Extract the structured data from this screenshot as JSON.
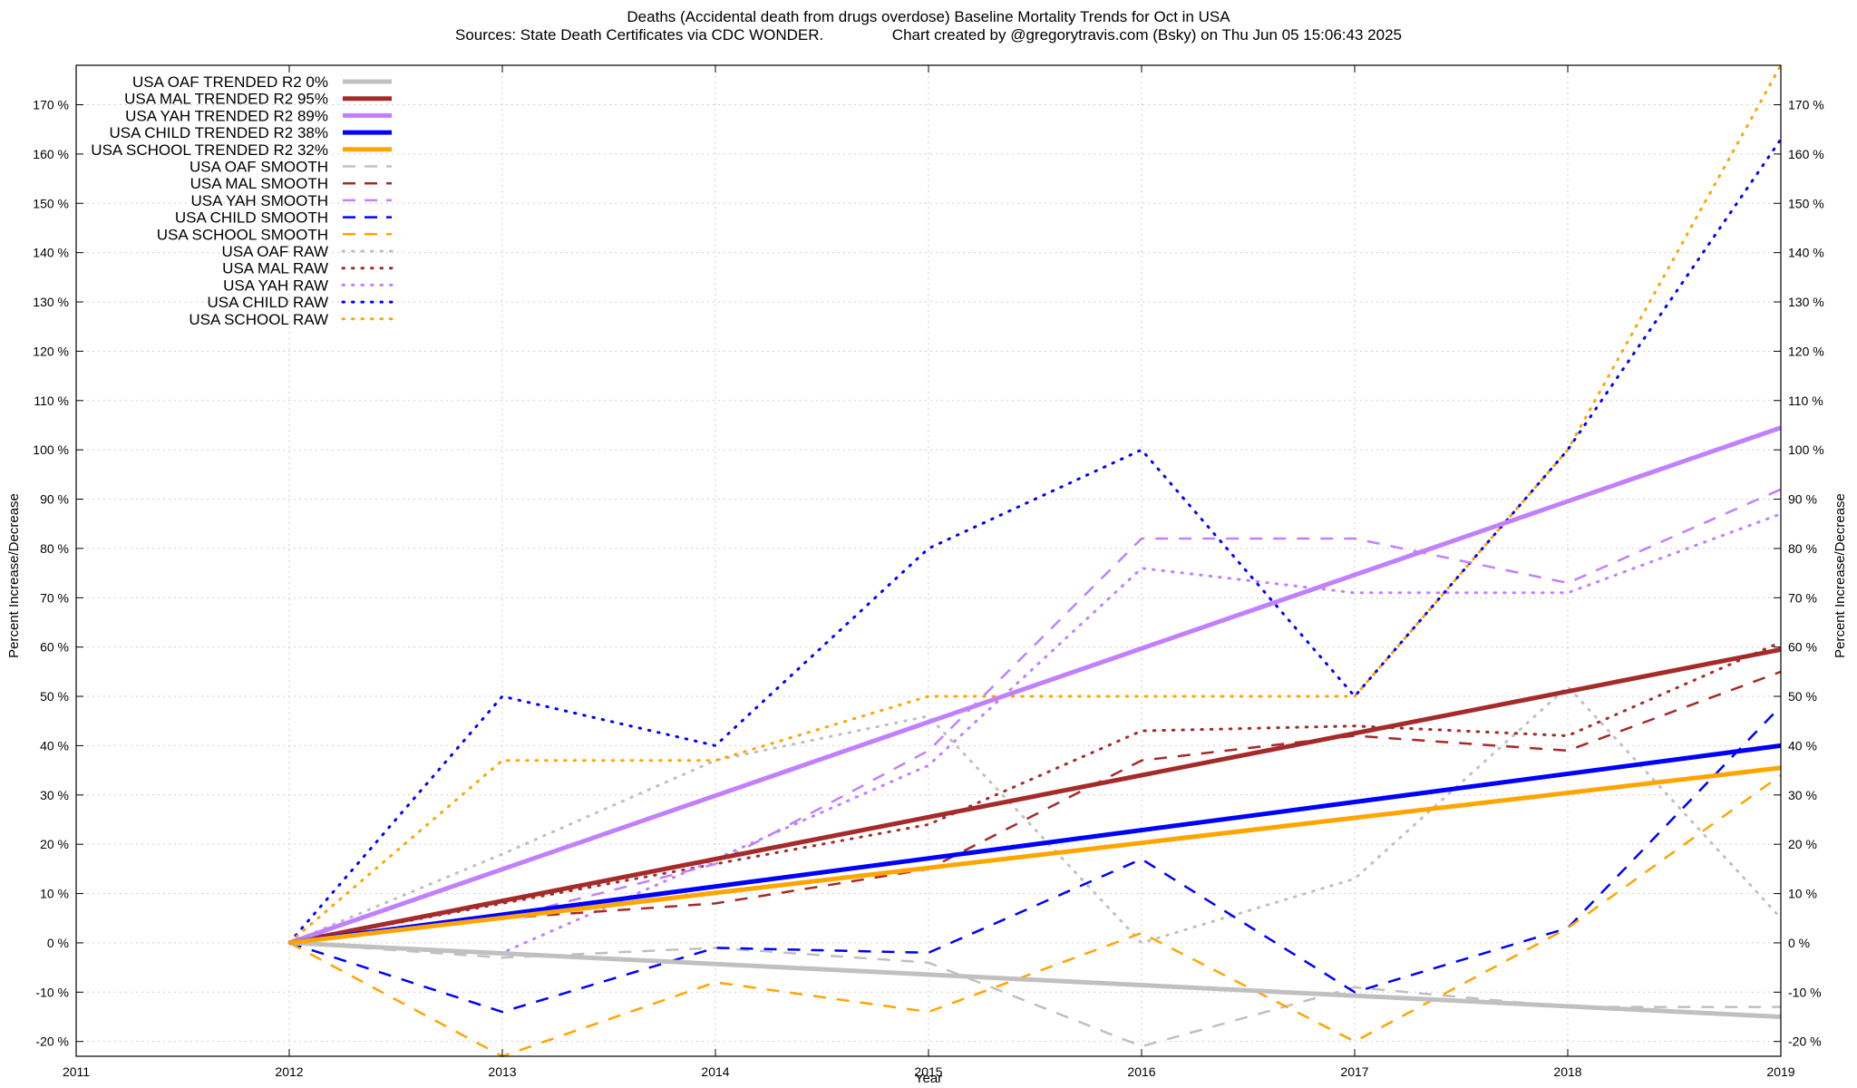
{
  "chart_data": {
    "type": "line",
    "title": "Deaths (Accidental death from drugs overdose)  Baseline Mortality Trends for Oct in USA",
    "subtitle": "Sources: State Death Certificates via CDC WONDER.                Chart created by @gregorytravis.com (Bsky) on Thu Jun 05 15:06:43 2025",
    "xlabel": "Year",
    "ylabel": "Percent Increase/Decrease",
    "xlim": [
      2011,
      2019
    ],
    "ylim": [
      -23,
      178
    ],
    "x_ticks": [
      {
        "value": 2011,
        "label": "2011"
      },
      {
        "value": 2012,
        "label": "2012"
      },
      {
        "value": 2013,
        "label": "2013"
      },
      {
        "value": 2014,
        "label": "2014"
      },
      {
        "value": 2015,
        "label": "2015"
      },
      {
        "value": 2016,
        "label": "2016"
      },
      {
        "value": 2017,
        "label": "2017"
      },
      {
        "value": 2018,
        "label": "2018"
      },
      {
        "value": 2019,
        "label": "2019"
      }
    ],
    "y_ticks": [
      {
        "value": -20,
        "label": "-20 %"
      },
      {
        "value": -10,
        "label": "-10 %"
      },
      {
        "value": 0,
        "label": "0 %"
      },
      {
        "value": 10,
        "label": "10 %"
      },
      {
        "value": 20,
        "label": "20 %"
      },
      {
        "value": 30,
        "label": "30 %"
      },
      {
        "value": 40,
        "label": "40 %"
      },
      {
        "value": 50,
        "label": "50 %"
      },
      {
        "value": 60,
        "label": "60 %"
      },
      {
        "value": 70,
        "label": "70 %"
      },
      {
        "value": 80,
        "label": "80 %"
      },
      {
        "value": 90,
        "label": "90 %"
      },
      {
        "value": 100,
        "label": "100 %"
      },
      {
        "value": 110,
        "label": "110 %"
      },
      {
        "value": 120,
        "label": "120 %"
      },
      {
        "value": 130,
        "label": "130 %"
      },
      {
        "value": 140,
        "label": "140 %"
      },
      {
        "value": 150,
        "label": "150 %"
      },
      {
        "value": 160,
        "label": "160 %"
      },
      {
        "value": 170,
        "label": "170 %"
      }
    ],
    "grid": true,
    "legend_position": "top-left",
    "series": [
      {
        "name": "USA OAF TRENDED R2   0%",
        "color": "#c0c0c0",
        "style": "solid",
        "x": [
          2012,
          2019
        ],
        "y": [
          0,
          -15
        ]
      },
      {
        "name": "USA MAL TRENDED R2  95%",
        "color": "#a52a2a",
        "style": "solid",
        "x": [
          2012,
          2019
        ],
        "y": [
          0,
          59.5
        ]
      },
      {
        "name": "USA YAH TRENDED R2  89%",
        "color": "#c080ff",
        "style": "solid",
        "x": [
          2012,
          2019
        ],
        "y": [
          0,
          104.5
        ]
      },
      {
        "name": "USA CHILD TRENDED R2  38%",
        "color": "#0000ff",
        "style": "solid",
        "x": [
          2012,
          2019
        ],
        "y": [
          0,
          40
        ]
      },
      {
        "name": "USA SCHOOL TRENDED R2  32%",
        "color": "#ffa500",
        "style": "solid",
        "x": [
          2012,
          2019
        ],
        "y": [
          0,
          35.5
        ]
      },
      {
        "name": "USA OAF SMOOTH",
        "color": "#c0c0c0",
        "style": "dashed",
        "x": [
          2012,
          2013,
          2014,
          2015,
          2016,
          2017,
          2018,
          2019
        ],
        "y": [
          0,
          -3,
          -1,
          -4,
          -21,
          -9,
          -13,
          -13
        ]
      },
      {
        "name": "USA MAL SMOOTH",
        "color": "#a52a2a",
        "style": "dashed",
        "x": [
          2012,
          2013,
          2014,
          2015,
          2016,
          2017,
          2018,
          2019
        ],
        "y": [
          0,
          5,
          8,
          15,
          37,
          42,
          39,
          55
        ]
      },
      {
        "name": "USA YAH SMOOTH",
        "color": "#c080ff",
        "style": "dashed",
        "x": [
          2012,
          2013,
          2014,
          2015,
          2016,
          2017,
          2018,
          2019
        ],
        "y": [
          0,
          5,
          16,
          39,
          82,
          82,
          73,
          92
        ]
      },
      {
        "name": "USA CHILD SMOOTH",
        "color": "#0000ff",
        "style": "dashed",
        "x": [
          2012,
          2013,
          2014,
          2015,
          2016,
          2017,
          2018,
          2019
        ],
        "y": [
          0,
          -14,
          -1,
          -2,
          17,
          -10,
          3,
          48
        ]
      },
      {
        "name": "USA SCHOOL SMOOTH",
        "color": "#ffa500",
        "style": "dashed",
        "x": [
          2012,
          2013,
          2014,
          2015,
          2016,
          2017,
          2018,
          2019
        ],
        "y": [
          0,
          -23,
          -8,
          -14,
          2,
          -20,
          3,
          34
        ]
      },
      {
        "name": "USA OAF RAW",
        "color": "#c0c0c0",
        "style": "dotted",
        "x": [
          2012,
          2013,
          2014,
          2015,
          2016,
          2017,
          2018,
          2019
        ],
        "y": [
          0,
          18,
          37,
          46,
          0,
          13,
          52,
          5
        ]
      },
      {
        "name": "USA MAL RAW",
        "color": "#a52a2a",
        "style": "dotted",
        "x": [
          2012,
          2013,
          2014,
          2015,
          2016,
          2017,
          2018,
          2019
        ],
        "y": [
          0,
          8,
          16,
          24,
          43,
          44,
          42,
          61
        ]
      },
      {
        "name": "USA YAH RAW",
        "color": "#c080ff",
        "style": "dotted",
        "x": [
          2012,
          2013,
          2014,
          2015,
          2016,
          2017,
          2018,
          2019
        ],
        "y": [
          0,
          -2,
          17,
          36,
          76,
          71,
          71,
          87
        ]
      },
      {
        "name": "USA CHILD RAW",
        "color": "#0000ff",
        "style": "dotted",
        "x": [
          2012,
          2013,
          2014,
          2015,
          2016,
          2017,
          2018,
          2019
        ],
        "y": [
          0,
          50,
          40,
          80,
          100,
          50,
          100,
          163
        ]
      },
      {
        "name": "USA SCHOOL RAW",
        "color": "#ffa500",
        "style": "dotted",
        "x": [
          2012,
          2013,
          2014,
          2015,
          2016,
          2017,
          2018,
          2019
        ],
        "y": [
          0,
          37,
          37,
          50,
          50,
          50,
          100,
          178
        ]
      }
    ]
  }
}
